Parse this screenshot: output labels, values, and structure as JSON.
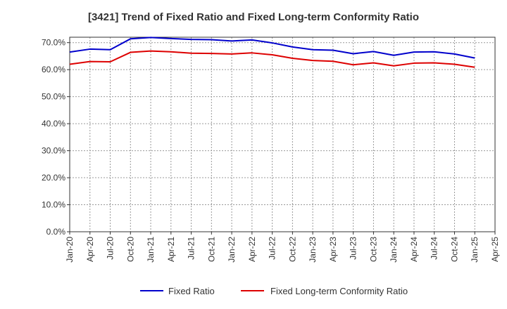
{
  "chart_data": {
    "type": "line",
    "title": "[3421]  Trend of Fixed Ratio and Fixed Long-term Conformity Ratio",
    "xlabel": "",
    "ylabel": "",
    "ylim": [
      0,
      72
    ],
    "y_ticks": [
      "0.0%",
      "10.0%",
      "20.0%",
      "30.0%",
      "40.0%",
      "50.0%",
      "60.0%",
      "70.0%"
    ],
    "x_ticks": [
      "Jan-20",
      "Apr-20",
      "Jul-20",
      "Oct-20",
      "Jan-21",
      "Apr-21",
      "Jul-21",
      "Oct-21",
      "Jan-22",
      "Apr-22",
      "Jul-22",
      "Oct-22",
      "Jan-23",
      "Apr-23",
      "Jul-23",
      "Oct-23",
      "Jan-24",
      "Apr-24",
      "Jul-24",
      "Oct-24",
      "Jan-25",
      "Apr-25"
    ],
    "x": [
      "Jan-20",
      "Apr-20",
      "Jul-20",
      "Oct-20",
      "Jan-21",
      "Apr-21",
      "Jul-21",
      "Oct-21",
      "Jan-22",
      "Apr-22",
      "Jul-22",
      "Oct-22",
      "Jan-23",
      "Apr-23",
      "Jul-23",
      "Oct-23",
      "Jan-24",
      "Apr-24",
      "Jul-24",
      "Oct-24",
      "Jan-25"
    ],
    "grid": true,
    "legend_position": "bottom",
    "series": [
      {
        "name": "Fixed Ratio",
        "color": "#0000cc",
        "values": [
          66.5,
          67.6,
          67.4,
          71.4,
          71.9,
          71.5,
          71.2,
          71.1,
          70.6,
          71.0,
          69.9,
          68.4,
          67.4,
          67.2,
          65.9,
          66.7,
          65.3,
          66.5,
          66.6,
          65.8,
          64.3
        ]
      },
      {
        "name": "Fixed Long-term Conformity Ratio",
        "color": "#dd0000",
        "values": [
          62.0,
          63.0,
          62.9,
          66.4,
          66.9,
          66.6,
          66.1,
          66.0,
          65.8,
          66.2,
          65.5,
          64.2,
          63.4,
          63.1,
          61.8,
          62.5,
          61.4,
          62.4,
          62.5,
          62.0,
          60.9
        ]
      }
    ]
  }
}
